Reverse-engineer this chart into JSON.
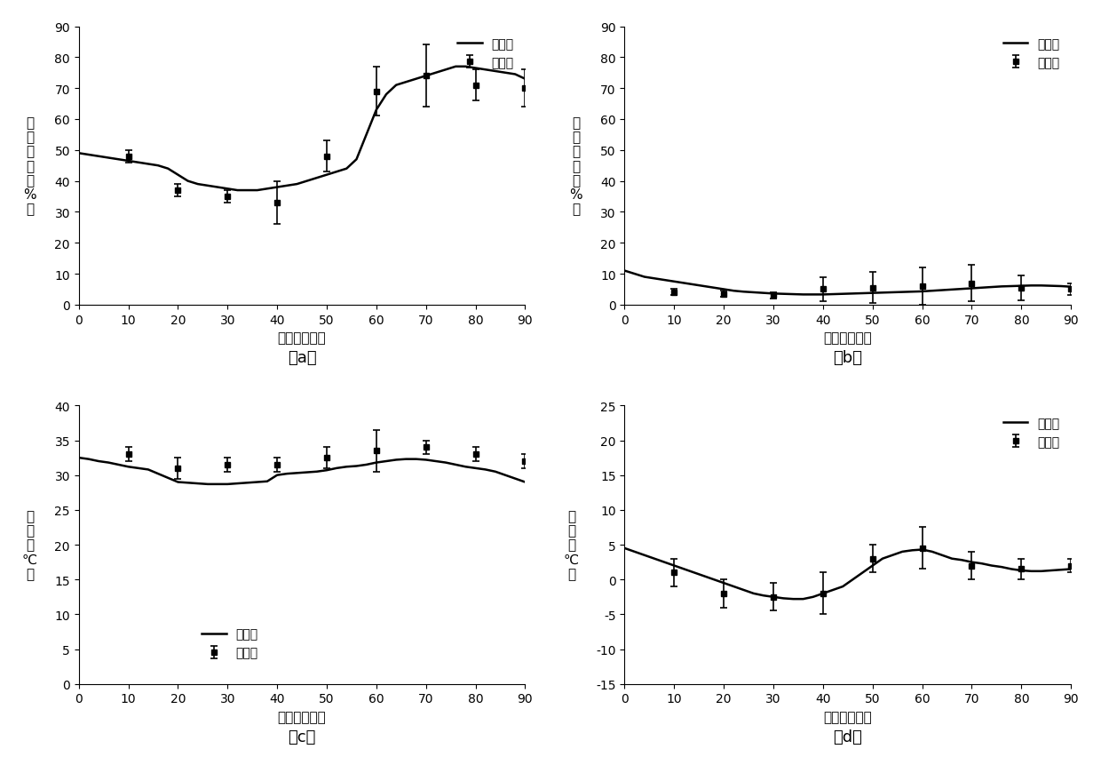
{
  "panel_a": {
    "ylabel_chars": [
      "相",
      "对",
      "湿",
      "度",
      "（",
      "%",
      "）"
    ],
    "xlabel": "时间（分钟）",
    "label": "（a）",
    "ylim": [
      0,
      90
    ],
    "yticks": [
      0,
      10,
      20,
      30,
      40,
      50,
      60,
      70,
      80,
      90
    ],
    "xlim": [
      0,
      90
    ],
    "xticks": [
      0,
      10,
      20,
      30,
      40,
      50,
      60,
      70,
      80,
      90
    ],
    "line_x": [
      0,
      2,
      4,
      6,
      8,
      10,
      12,
      14,
      16,
      18,
      20,
      22,
      24,
      26,
      28,
      30,
      32,
      34,
      36,
      38,
      40,
      42,
      44,
      46,
      48,
      50,
      52,
      54,
      56,
      58,
      60,
      62,
      64,
      66,
      68,
      70,
      72,
      74,
      76,
      78,
      80,
      82,
      84,
      86,
      88,
      90
    ],
    "line_y": [
      49,
      48.5,
      48,
      47.5,
      47,
      46.5,
      46,
      45.5,
      45,
      44,
      42,
      40,
      39,
      38.5,
      38,
      37.5,
      37,
      37,
      37,
      37.5,
      38,
      38.5,
      39,
      40,
      41,
      42,
      43,
      44,
      47,
      55,
      63,
      68,
      71,
      72,
      73,
      74,
      75,
      76,
      77,
      77,
      76.5,
      76,
      75.5,
      75,
      74.5,
      73
    ],
    "scatter_x": [
      10,
      20,
      30,
      40,
      50,
      60,
      70,
      80,
      90
    ],
    "scatter_y": [
      48,
      37,
      35,
      33,
      48,
      69,
      74,
      71,
      70
    ],
    "scatter_yerr": [
      2,
      2,
      2,
      7,
      5,
      8,
      10,
      5,
      6
    ],
    "legend_pred": "预测值",
    "legend_exp": "实验值",
    "legend_loc": "upper right"
  },
  "panel_b": {
    "ylabel_chars": [
      "相",
      "对",
      "湿",
      "度",
      "（",
      "%",
      "）"
    ],
    "xlabel": "时间（分钟）",
    "label": "（b）",
    "ylim": [
      0,
      90
    ],
    "yticks": [
      0,
      10,
      20,
      30,
      40,
      50,
      60,
      70,
      80,
      90
    ],
    "xlim": [
      0,
      90
    ],
    "xticks": [
      0,
      10,
      20,
      30,
      40,
      50,
      60,
      70,
      80,
      90
    ],
    "line_x": [
      0,
      2,
      4,
      6,
      8,
      10,
      12,
      14,
      16,
      18,
      20,
      22,
      24,
      26,
      28,
      30,
      32,
      34,
      36,
      38,
      40,
      42,
      44,
      46,
      48,
      50,
      52,
      54,
      56,
      58,
      60,
      62,
      64,
      66,
      68,
      70,
      72,
      74,
      76,
      78,
      80,
      82,
      84,
      86,
      88,
      90
    ],
    "line_y": [
      11,
      10,
      9,
      8.5,
      8,
      7.5,
      7,
      6.5,
      6,
      5.5,
      5,
      4.5,
      4.2,
      4,
      3.8,
      3.6,
      3.5,
      3.4,
      3.3,
      3.3,
      3.3,
      3.4,
      3.5,
      3.6,
      3.7,
      3.8,
      3.9,
      4,
      4.1,
      4.2,
      4.3,
      4.5,
      4.7,
      4.9,
      5.1,
      5.3,
      5.5,
      5.7,
      5.9,
      6,
      6.1,
      6.2,
      6.2,
      6.1,
      6,
      5.8
    ],
    "scatter_x": [
      10,
      20,
      30,
      40,
      50,
      60,
      70,
      80,
      90
    ],
    "scatter_y": [
      4,
      3.5,
      3,
      5,
      5.5,
      6,
      7,
      5.5,
      5
    ],
    "scatter_yerr": [
      1,
      1,
      1,
      4,
      5,
      6,
      6,
      4,
      2
    ],
    "legend_pred": "预测值",
    "legend_exp": "实验值",
    "legend_loc": "upper right"
  },
  "panel_c": {
    "ylabel_chars": [
      "温",
      "度",
      "（",
      "℃",
      "）"
    ],
    "xlabel": "时间（分钟）",
    "label": "（c）",
    "ylim": [
      0,
      40
    ],
    "yticks": [
      0,
      5,
      10,
      15,
      20,
      25,
      30,
      35,
      40
    ],
    "xlim": [
      0,
      90
    ],
    "xticks": [
      0,
      10,
      20,
      30,
      40,
      50,
      60,
      70,
      80,
      90
    ],
    "line_x": [
      0,
      2,
      4,
      6,
      8,
      10,
      12,
      14,
      16,
      18,
      20,
      22,
      24,
      26,
      28,
      30,
      32,
      34,
      36,
      38,
      40,
      42,
      44,
      46,
      48,
      50,
      52,
      54,
      56,
      58,
      60,
      62,
      64,
      66,
      68,
      70,
      72,
      74,
      76,
      78,
      80,
      82,
      84,
      86,
      88,
      90
    ],
    "line_y": [
      32.5,
      32.3,
      32,
      31.8,
      31.5,
      31.2,
      31,
      30.8,
      30.2,
      29.6,
      29,
      28.9,
      28.8,
      28.7,
      28.7,
      28.7,
      28.8,
      28.9,
      29,
      29.1,
      30,
      30.2,
      30.3,
      30.4,
      30.5,
      30.7,
      31,
      31.2,
      31.3,
      31.5,
      31.8,
      32,
      32.2,
      32.3,
      32.3,
      32.2,
      32,
      31.8,
      31.5,
      31.2,
      31,
      30.8,
      30.5,
      30,
      29.5,
      29
    ],
    "scatter_x": [
      10,
      20,
      30,
      40,
      50,
      60,
      70,
      80,
      90
    ],
    "scatter_y": [
      33,
      31,
      31.5,
      31.5,
      32.5,
      33.5,
      34,
      33,
      32
    ],
    "scatter_yerr": [
      1,
      1.5,
      1,
      1,
      1.5,
      3,
      1,
      1,
      1
    ],
    "legend_pred": "预测值",
    "legend_exp": "实验值",
    "legend_loc": "lower center"
  },
  "panel_d": {
    "ylabel_chars": [
      "温",
      "度",
      "（",
      "℃",
      "）"
    ],
    "xlabel": "时间（分钟）",
    "label": "（d）",
    "ylim": [
      -15,
      25
    ],
    "yticks": [
      -15,
      -10,
      -5,
      0,
      5,
      10,
      15,
      20,
      25
    ],
    "xlim": [
      0,
      90
    ],
    "xticks": [
      0,
      10,
      20,
      30,
      40,
      50,
      60,
      70,
      80,
      90
    ],
    "line_x": [
      0,
      2,
      4,
      6,
      8,
      10,
      12,
      14,
      16,
      18,
      20,
      22,
      24,
      26,
      28,
      30,
      32,
      34,
      36,
      38,
      40,
      42,
      44,
      46,
      48,
      50,
      52,
      54,
      56,
      58,
      60,
      62,
      64,
      66,
      68,
      70,
      72,
      74,
      76,
      78,
      80,
      82,
      84,
      86,
      88,
      90
    ],
    "line_y": [
      4.5,
      4,
      3.5,
      3,
      2.5,
      2,
      1.5,
      1,
      0.5,
      0,
      -0.5,
      -1,
      -1.5,
      -2,
      -2.3,
      -2.5,
      -2.7,
      -2.8,
      -2.8,
      -2.5,
      -2,
      -1.5,
      -1,
      0,
      1,
      2,
      3,
      3.5,
      4,
      4.2,
      4.3,
      4,
      3.5,
      3,
      2.8,
      2.5,
      2.3,
      2,
      1.8,
      1.5,
      1.3,
      1.2,
      1.2,
      1.3,
      1.4,
      1.5
    ],
    "scatter_x": [
      10,
      20,
      30,
      40,
      50,
      60,
      70,
      80,
      90
    ],
    "scatter_y": [
      1,
      -2,
      -2.5,
      -2,
      3,
      4.5,
      2,
      1.5,
      2
    ],
    "scatter_yerr": [
      2,
      2,
      2,
      3,
      2,
      3,
      2,
      1.5,
      1
    ],
    "legend_pred": "预测值",
    "legend_exp": "实验值",
    "legend_loc": "upper right"
  }
}
